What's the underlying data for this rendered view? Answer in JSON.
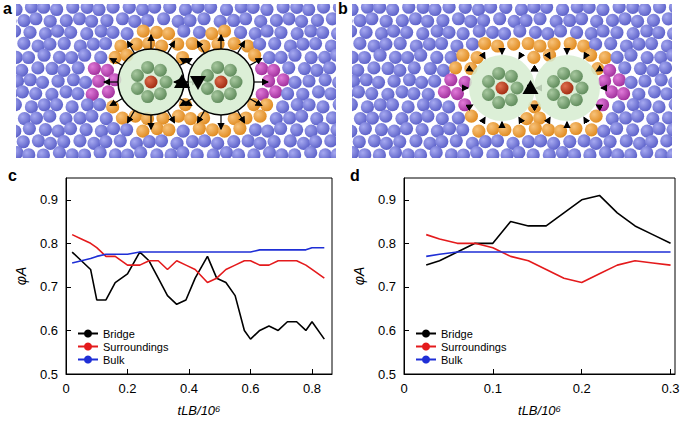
{
  "panels": [
    {
      "label": "a"
    },
    {
      "label": "b"
    }
  ],
  "chart_data": [
    {
      "type": "line",
      "title": "c",
      "xlabel": "tLB/10⁶",
      "ylabel": "φA",
      "x": [
        0.02,
        0.05,
        0.08,
        0.1,
        0.13,
        0.16,
        0.2,
        0.24,
        0.27,
        0.3,
        0.33,
        0.36,
        0.39,
        0.42,
        0.46,
        0.49,
        0.52,
        0.55,
        0.58,
        0.6,
        0.63,
        0.66,
        0.69,
        0.72,
        0.75,
        0.78,
        0.8,
        0.84
      ],
      "series": [
        {
          "name": "Bridge",
          "color": "#000000",
          "values": [
            0.78,
            0.76,
            0.74,
            0.67,
            0.67,
            0.71,
            0.73,
            0.78,
            0.76,
            0.72,
            0.68,
            0.66,
            0.67,
            0.72,
            0.77,
            0.72,
            0.71,
            0.68,
            0.6,
            0.58,
            0.6,
            0.61,
            0.6,
            0.62,
            0.62,
            0.6,
            0.62,
            0.58
          ]
        },
        {
          "name": "Surroundings",
          "color": "#e41a1c",
          "values": [
            0.82,
            0.81,
            0.8,
            0.79,
            0.77,
            0.77,
            0.75,
            0.75,
            0.76,
            0.76,
            0.74,
            0.76,
            0.75,
            0.74,
            0.71,
            0.72,
            0.74,
            0.75,
            0.76,
            0.76,
            0.75,
            0.75,
            0.76,
            0.76,
            0.76,
            0.75,
            0.74,
            0.72
          ]
        },
        {
          "name": "Bulk",
          "color": "#1f2fd6",
          "values": [
            0.755,
            0.76,
            0.765,
            0.77,
            0.775,
            0.775,
            0.775,
            0.78,
            0.78,
            0.78,
            0.78,
            0.78,
            0.78,
            0.78,
            0.78,
            0.78,
            0.78,
            0.78,
            0.78,
            0.78,
            0.785,
            0.785,
            0.785,
            0.785,
            0.785,
            0.785,
            0.79,
            0.79
          ]
        }
      ],
      "xlim": [
        0,
        0.865
      ],
      "xticks": [
        0,
        0.2,
        0.4,
        0.6,
        0.8
      ],
      "ylim": [
        0.5,
        0.95
      ],
      "yticks": [
        0.5,
        0.6,
        0.7,
        0.8,
        0.9
      ],
      "grid": false,
      "legend": "lower left"
    },
    {
      "type": "line",
      "title": "d",
      "xlabel": "tLB/10⁶",
      "ylabel": "φA",
      "x": [
        0.025,
        0.04,
        0.06,
        0.08,
        0.1,
        0.12,
        0.14,
        0.16,
        0.18,
        0.2,
        0.22,
        0.24,
        0.26,
        0.28,
        0.3
      ],
      "series": [
        {
          "name": "Bridge",
          "color": "#000000",
          "values": [
            0.75,
            0.76,
            0.78,
            0.8,
            0.8,
            0.85,
            0.84,
            0.84,
            0.87,
            0.9,
            0.91,
            0.87,
            0.84,
            0.82,
            0.8
          ]
        },
        {
          "name": "Surroundings",
          "color": "#e41a1c",
          "values": [
            0.82,
            0.81,
            0.8,
            0.8,
            0.79,
            0.77,
            0.76,
            0.74,
            0.72,
            0.71,
            0.73,
            0.75,
            0.76,
            0.755,
            0.75
          ]
        },
        {
          "name": "Bulk",
          "color": "#1f2fd6",
          "values": [
            0.77,
            0.775,
            0.78,
            0.78,
            0.78,
            0.78,
            0.78,
            0.78,
            0.78,
            0.78,
            0.78,
            0.78,
            0.78,
            0.78,
            0.78
          ]
        }
      ],
      "xlim": [
        0,
        0.305
      ],
      "xticks": [
        0,
        0.1,
        0.2,
        0.3
      ],
      "ylim": [
        0.5,
        0.95
      ],
      "yticks": [
        0.5,
        0.6,
        0.7,
        0.8,
        0.9
      ],
      "grid": false,
      "legend": "lower left"
    }
  ]
}
